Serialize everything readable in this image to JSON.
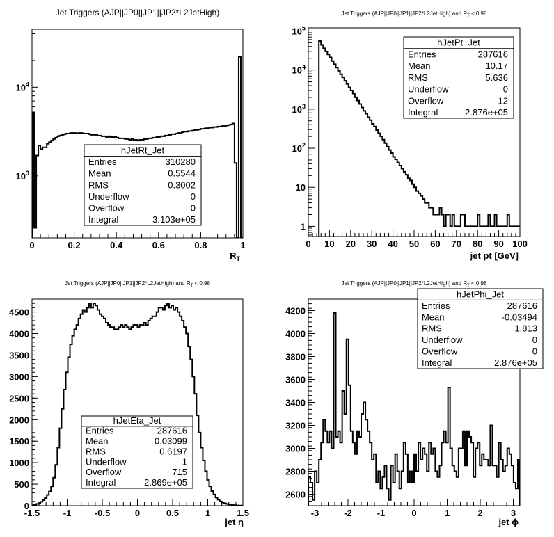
{
  "chart_data": [
    {
      "type": "histogram",
      "title": "Jet Triggers (AJP||JP0||JP1||JP2*L2JetHigh)",
      "xlabel": "R",
      "xlabel_sub": "T",
      "xlim": [
        0,
        1
      ],
      "ylim": [
        200,
        45000
      ],
      "log_y": true,
      "x_ticks": [
        {
          "v": 0,
          "t": "0"
        },
        {
          "v": 0.2,
          "t": "0.2"
        },
        {
          "v": 0.4,
          "t": "0.4"
        },
        {
          "v": 0.6,
          "t": "0.6"
        },
        {
          "v": 0.8,
          "t": "0.8"
        },
        {
          "v": 1,
          "t": "1"
        }
      ],
      "y_ticks": [
        {
          "v": 1000,
          "b": "10",
          "e": "3"
        },
        {
          "v": 10000,
          "b": "10",
          "e": "4"
        }
      ],
      "bins": {
        "x0": 0,
        "width": 0.01,
        "values": [
          5200,
          260,
          1700,
          2200,
          2000,
          2100,
          2100,
          2300,
          2400,
          2500,
          2600,
          2700,
          2800,
          2850,
          2900,
          2950,
          3000,
          3000,
          3050,
          3050,
          3050,
          3000,
          3050,
          3050,
          3000,
          3000,
          3000,
          2950,
          2900,
          2900,
          2900,
          2850,
          2850,
          2800,
          2800,
          2750,
          2800,
          2750,
          2700,
          2750,
          2700,
          2650,
          2650,
          2650,
          2600,
          2600,
          2550,
          2600,
          2550,
          2550,
          2500,
          2550,
          2550,
          2600,
          2600,
          2650,
          2650,
          2700,
          2700,
          2750,
          2750,
          2800,
          2800,
          2850,
          2850,
          2900,
          2950,
          2950,
          3000,
          3050,
          3050,
          3100,
          3150,
          3150,
          3200,
          3200,
          3250,
          3300,
          3300,
          3350,
          3400,
          3400,
          3450,
          3450,
          3500,
          3500,
          3550,
          3550,
          3600,
          3600,
          3650,
          3650,
          3700,
          3750,
          3800,
          3900,
          1400,
          200,
          22000,
          200
        ]
      },
      "stats": {
        "name": "hJetRt_Jet",
        "rows": [
          [
            "Entries",
            "310280"
          ],
          [
            "Mean",
            "0.5544"
          ],
          [
            "RMS",
            "0.3002"
          ],
          [
            "Underflow",
            "0"
          ],
          [
            "Overflow",
            "0"
          ],
          [
            "Integral",
            "3.103e+05"
          ]
        ]
      }
    },
    {
      "type": "histogram",
      "title": "Jet Triggers (AJP||JP0||JP1||JP2*L2JetHigh) and R",
      "title_sub": "T",
      "title_suffix": " < 0.98",
      "xlabel": "jet pt [GeV]",
      "xlim": [
        0,
        100
      ],
      "ylim": [
        0.55,
        120000
      ],
      "log_y": true,
      "x_ticks": [
        {
          "v": 0,
          "t": "0"
        },
        {
          "v": 10,
          "t": "10"
        },
        {
          "v": 20,
          "t": "20"
        },
        {
          "v": 30,
          "t": "30"
        },
        {
          "v": 40,
          "t": "40"
        },
        {
          "v": 50,
          "t": "50"
        },
        {
          "v": 60,
          "t": "60"
        },
        {
          "v": 70,
          "t": "70"
        },
        {
          "v": 80,
          "t": "80"
        },
        {
          "v": 90,
          "t": "90"
        },
        {
          "v": 100,
          "t": "100"
        }
      ],
      "y_ticks": [
        {
          "v": 1,
          "t": "1"
        },
        {
          "v": 10,
          "t": "10"
        },
        {
          "v": 100,
          "b": "10",
          "e": "2"
        },
        {
          "v": 1000,
          "b": "10",
          "e": "3"
        },
        {
          "v": 10000,
          "b": "10",
          "e": "4"
        },
        {
          "v": 100000,
          "b": "10",
          "e": "5"
        }
      ],
      "bins": {
        "x0": 5,
        "width": 1,
        "values": [
          55000,
          44000,
          36000,
          30000,
          25000,
          21000,
          17000,
          14000,
          11500,
          9500,
          7800,
          6500,
          5300,
          4400,
          3600,
          3000,
          2500,
          2000,
          1650,
          1350,
          1100,
          900,
          760,
          620,
          520,
          420,
          360,
          290,
          240,
          200,
          165,
          135,
          110,
          90,
          75,
          60,
          52,
          43,
          36,
          30,
          25,
          21,
          17,
          15,
          12,
          10,
          8,
          7,
          6,
          5,
          4,
          4,
          3,
          3,
          2,
          2,
          2,
          3,
          2,
          1,
          2,
          2,
          1,
          2,
          1,
          1,
          1,
          2,
          2,
          1,
          1,
          1,
          1,
          1,
          1,
          2,
          1,
          1,
          1,
          1,
          2,
          1,
          1,
          2,
          1,
          1,
          1,
          1,
          1,
          2,
          1,
          1,
          1,
          1,
          1,
          1
        ]
      },
      "stats": {
        "name": "hJetPt_Jet",
        "rows": [
          [
            "Entries",
            "287616"
          ],
          [
            "Mean",
            "10.17"
          ],
          [
            "RMS",
            "5.636"
          ],
          [
            "Underflow",
            "0"
          ],
          [
            "Overflow",
            "12"
          ],
          [
            "Integral",
            "2.876e+05"
          ]
        ]
      }
    },
    {
      "type": "histogram",
      "title": "Jet Triggers (AJP||JP0||JP1||JP2*L2JetHigh) and R",
      "title_sub": "T",
      "title_suffix": " < 0.98",
      "xlabel": "jet η",
      "xlim": [
        -1.5,
        1.5
      ],
      "ylim": [
        0,
        4800
      ],
      "log_y": false,
      "x_ticks": [
        {
          "v": -1.5,
          "t": "-1.5"
        },
        {
          "v": -1,
          "t": "-1"
        },
        {
          "v": -0.5,
          "t": "-0.5"
        },
        {
          "v": 0,
          "t": "0"
        },
        {
          "v": 0.5,
          "t": "0.5"
        },
        {
          "v": 1,
          "t": "1"
        },
        {
          "v": 1.5,
          "t": "1.5"
        }
      ],
      "y_ticks": [
        {
          "v": 0,
          "t": "0"
        },
        {
          "v": 500,
          "t": "500"
        },
        {
          "v": 1000,
          "t": "1000"
        },
        {
          "v": 1500,
          "t": "1500"
        },
        {
          "v": 2000,
          "t": "2000"
        },
        {
          "v": 2500,
          "t": "2500"
        },
        {
          "v": 3000,
          "t": "3000"
        },
        {
          "v": 3500,
          "t": "3500"
        },
        {
          "v": 4000,
          "t": "4000"
        },
        {
          "v": 4500,
          "t": "4500"
        }
      ],
      "bins": {
        "x0": -1.5,
        "width": 0.03,
        "values": [
          10,
          20,
          40,
          60,
          90,
          130,
          180,
          250,
          330,
          450,
          650,
          950,
          1350,
          1800,
          2250,
          2700,
          3100,
          3450,
          3750,
          3950,
          4100,
          4200,
          4350,
          4450,
          4550,
          4500,
          4600,
          4700,
          4600,
          4700,
          4650,
          4550,
          4450,
          4400,
          4350,
          4250,
          4200,
          4150,
          4150,
          4100,
          4100,
          4150,
          4200,
          4150,
          4200,
          4150,
          4100,
          4150,
          4200,
          4200,
          4150,
          4200,
          4200,
          4250,
          4200,
          4300,
          4350,
          4400,
          4400,
          4500,
          4600,
          4600,
          4550,
          4650,
          4700,
          4600,
          4650,
          4550,
          4600,
          4500,
          4400,
          4300,
          4150,
          4000,
          3700,
          3400,
          3000,
          2600,
          2100,
          1700,
          1350,
          1050,
          800,
          600,
          450,
          340,
          260,
          190,
          140,
          100,
          75,
          55,
          40,
          30,
          20,
          14,
          10,
          6,
          4,
          2
        ]
      },
      "stats": {
        "name": "hJetEta_Jet",
        "rows": [
          [
            "Entries",
            "287616"
          ],
          [
            "Mean",
            "0.03099"
          ],
          [
            "RMS",
            "0.6197"
          ],
          [
            "Underflow",
            "1"
          ],
          [
            "Overflow",
            "715"
          ],
          [
            "Integral",
            "2.869e+05"
          ]
        ]
      }
    },
    {
      "type": "histogram",
      "title": "Jet Triggers (AJP||JP0||JP1||JP2*L2JetHigh) and R",
      "title_sub": "T",
      "title_suffix": " < 0.98",
      "xlabel": "jet ϕ",
      "xlim": [
        -3.2,
        3.2
      ],
      "ylim": [
        2500,
        4300
      ],
      "log_y": false,
      "x_ticks": [
        {
          "v": -3,
          "t": "-3"
        },
        {
          "v": -2,
          "t": "-2"
        },
        {
          "v": -1,
          "t": "-1"
        },
        {
          "v": 0,
          "t": "0"
        },
        {
          "v": 1,
          "t": "1"
        },
        {
          "v": 2,
          "t": "2"
        },
        {
          "v": 3,
          "t": "3"
        }
      ],
      "y_ticks": [
        {
          "v": 2600,
          "t": "2600"
        },
        {
          "v": 2800,
          "t": "2800"
        },
        {
          "v": 3000,
          "t": "3000"
        },
        {
          "v": 3200,
          "t": "3200"
        },
        {
          "v": 3400,
          "t": "3400"
        },
        {
          "v": 3600,
          "t": "3600"
        },
        {
          "v": 3800,
          "t": "3800"
        },
        {
          "v": 4000,
          "t": "4000"
        },
        {
          "v": 4200,
          "t": "4200"
        }
      ],
      "bins": {
        "x0": -3.2,
        "width": 0.064,
        "values": [
          2750,
          2700,
          2550,
          2800,
          2700,
          2900,
          3050,
          3250,
          3150,
          3050,
          3150,
          3000,
          4180,
          3100,
          3150,
          3050,
          3500,
          3300,
          3950,
          3550,
          3150,
          3050,
          2950,
          3150,
          3100,
          3300,
          3400,
          3250,
          3150,
          3050,
          2900,
          2950,
          2700,
          2800,
          2650,
          2750,
          2850,
          2650,
          2550,
          2850,
          2700,
          2950,
          2800,
          2650,
          2800,
          3050,
          2950,
          2700,
          2800,
          2700,
          2950,
          2800,
          3050,
          2900,
          3000,
          2950,
          2800,
          3050,
          2950,
          3000,
          2800,
          2750,
          2850,
          3050,
          3150,
          3050,
          3530,
          3000,
          2850,
          2800,
          2750,
          3000,
          3000,
          3150,
          2850,
          3150,
          3100,
          3050,
          2750,
          3000,
          3050,
          2850,
          2950,
          2900,
          2900,
          2850,
          3200,
          2850,
          2850,
          2750,
          3050,
          2900,
          2800,
          2850,
          3000,
          2950,
          2850,
          2700,
          2650,
          2900
        ]
      },
      "stats": {
        "name": "hJetPhi_Jet",
        "rows": [
          [
            "Entries",
            "287616"
          ],
          [
            "Mean",
            "-0.03494"
          ],
          [
            "RMS",
            "1.813"
          ],
          [
            "Underflow",
            "0"
          ],
          [
            "Overflow",
            "0"
          ],
          [
            "Integral",
            "2.876e+05"
          ]
        ]
      }
    }
  ]
}
